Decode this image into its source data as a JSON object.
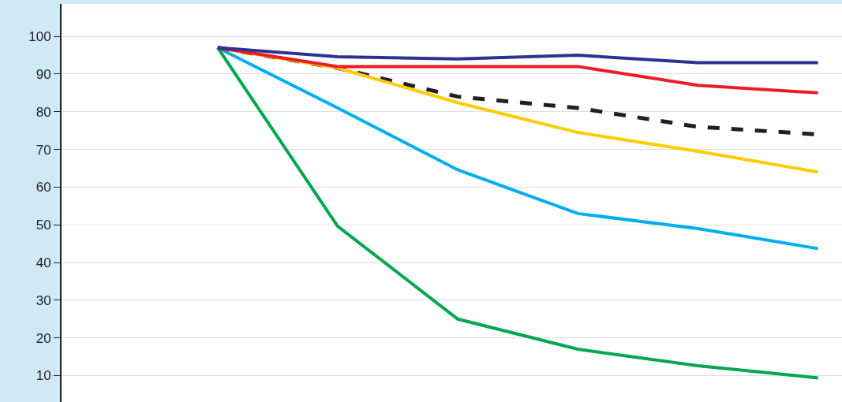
{
  "chart_data": {
    "type": "line",
    "categories": [
      null,
      null,
      null,
      null,
      null,
      null
    ],
    "series": [
      {
        "color": "#00a651",
        "values": [
          97,
          49.6,
          25,
          17,
          12.6,
          9.4
        ]
      },
      {
        "color": "#00aeef",
        "values": [
          97,
          81,
          64.6,
          53,
          49,
          43.7
        ]
      },
      {
        "color": "#231f20",
        "values": [
          97,
          91.6,
          84,
          81,
          76,
          74
        ],
        "line_style": "dashed"
      },
      {
        "color": "#ffcc00",
        "values": [
          97,
          91.6,
          82.4,
          74.5,
          69.5,
          64
        ]
      },
      {
        "color": "#ed1c24",
        "values": [
          97,
          92,
          92,
          92,
          87,
          85
        ]
      },
      {
        "color": "#2e3192",
        "values": [
          97,
          94.6,
          94,
          95,
          93,
          93
        ]
      }
    ],
    "ylim": [
      3,
      108.6
    ],
    "yticks": [
      10,
      20,
      30,
      40,
      50,
      60,
      70,
      80,
      90,
      100
    ],
    "grid": "y",
    "marker": "none",
    "line_style": "solid",
    "tick_labels": "y"
  }
}
